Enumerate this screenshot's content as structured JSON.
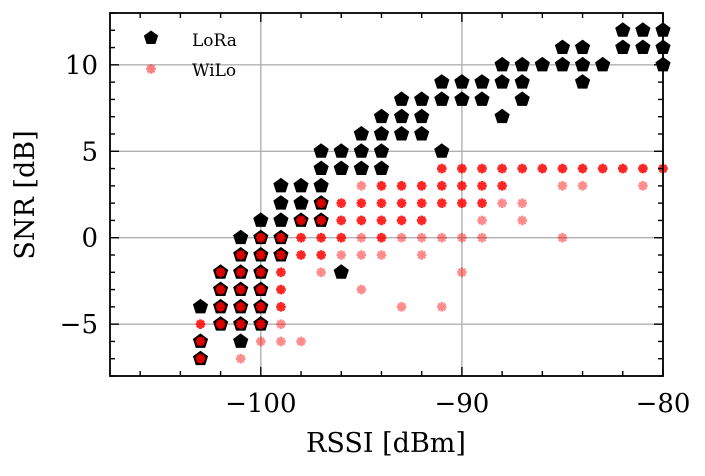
{
  "chart_data": {
    "type": "scatter",
    "title": "",
    "xlabel": "RSSI [dBm]",
    "ylabel": "SNR [dB]",
    "xlim": [
      -107.5,
      -80
    ],
    "ylim": [
      -8,
      13
    ],
    "xticks": [
      -100,
      -90,
      -80
    ],
    "xtick_labels": [
      "−100",
      "−90",
      "−80"
    ],
    "yticks": [
      -5,
      0,
      5,
      10
    ],
    "ytick_labels": [
      "−5",
      "0",
      "5",
      "10"
    ],
    "grid": true,
    "legend_position": "top-left",
    "series": [
      {
        "name": "LoRa",
        "marker": "pentagon",
        "color": "#000000",
        "points": [
          [
            -103,
            -7
          ],
          [
            -103,
            -6
          ],
          [
            -103,
            -4
          ],
          [
            -102,
            -5
          ],
          [
            -102,
            -4
          ],
          [
            -102,
            -3
          ],
          [
            -102,
            -2
          ],
          [
            -101,
            -6
          ],
          [
            -101,
            -5
          ],
          [
            -101,
            -4
          ],
          [
            -101,
            -3
          ],
          [
            -101,
            -2
          ],
          [
            -101,
            -1
          ],
          [
            -101,
            0
          ],
          [
            -100,
            -5
          ],
          [
            -100,
            -4
          ],
          [
            -100,
            -3
          ],
          [
            -100,
            -2
          ],
          [
            -100,
            -1
          ],
          [
            -100,
            0
          ],
          [
            -100,
            1
          ],
          [
            -99,
            -1
          ],
          [
            -99,
            0
          ],
          [
            -99,
            1
          ],
          [
            -99,
            2
          ],
          [
            -99,
            3
          ],
          [
            -98,
            1
          ],
          [
            -98,
            2
          ],
          [
            -98,
            3
          ],
          [
            -97,
            1
          ],
          [
            -97,
            2
          ],
          [
            -97,
            3
          ],
          [
            -97,
            4
          ],
          [
            -97,
            5
          ],
          [
            -96,
            -2
          ],
          [
            -96,
            4
          ],
          [
            -96,
            5
          ],
          [
            -95,
            4
          ],
          [
            -95,
            5
          ],
          [
            -95,
            6
          ],
          [
            -94,
            4
          ],
          [
            -94,
            5
          ],
          [
            -94,
            6
          ],
          [
            -94,
            7
          ],
          [
            -93,
            6
          ],
          [
            -93,
            7
          ],
          [
            -93,
            8
          ],
          [
            -92,
            6
          ],
          [
            -92,
            7
          ],
          [
            -92,
            8
          ],
          [
            -91,
            5
          ],
          [
            -91,
            8
          ],
          [
            -91,
            9
          ],
          [
            -90,
            8
          ],
          [
            -90,
            9
          ],
          [
            -89,
            8
          ],
          [
            -89,
            9
          ],
          [
            -88,
            7
          ],
          [
            -88,
            9
          ],
          [
            -88,
            10
          ],
          [
            -87,
            8
          ],
          [
            -87,
            9
          ],
          [
            -87,
            10
          ],
          [
            -86,
            10
          ],
          [
            -85,
            10
          ],
          [
            -85,
            11
          ],
          [
            -84,
            9
          ],
          [
            -84,
            10
          ],
          [
            -84,
            11
          ],
          [
            -83,
            10
          ],
          [
            -82,
            11
          ],
          [
            -82,
            12
          ],
          [
            -81,
            11
          ],
          [
            -81,
            12
          ],
          [
            -80,
            10
          ],
          [
            -80,
            11
          ],
          [
            -80,
            12
          ]
        ]
      },
      {
        "name": "WiLo",
        "marker": "asterisk",
        "color": "#ff0000",
        "strong_points": [
          [
            -103,
            -7
          ],
          [
            -103,
            -6
          ],
          [
            -103,
            -5
          ],
          [
            -102,
            -5
          ],
          [
            -102,
            -4
          ],
          [
            -102,
            -3
          ],
          [
            -102,
            -2
          ],
          [
            -101,
            -5
          ],
          [
            -101,
            -4
          ],
          [
            -101,
            -3
          ],
          [
            -101,
            -2
          ],
          [
            -101,
            -1
          ],
          [
            -100,
            -5
          ],
          [
            -100,
            -4
          ],
          [
            -100,
            -3
          ],
          [
            -100,
            -2
          ],
          [
            -100,
            -1
          ],
          [
            -100,
            0
          ],
          [
            -99,
            -4
          ],
          [
            -99,
            -3
          ],
          [
            -99,
            -2
          ],
          [
            -99,
            -1
          ],
          [
            -99,
            0
          ],
          [
            -98,
            -1
          ],
          [
            -98,
            0
          ],
          [
            -98,
            1
          ],
          [
            -97,
            -1
          ],
          [
            -97,
            0
          ],
          [
            -97,
            1
          ],
          [
            -97,
            2
          ],
          [
            -96,
            0
          ],
          [
            -96,
            1
          ],
          [
            -96,
            2
          ],
          [
            -95,
            1
          ],
          [
            -95,
            2
          ],
          [
            -94,
            0
          ],
          [
            -94,
            1
          ],
          [
            -94,
            2
          ],
          [
            -94,
            3
          ],
          [
            -93,
            1
          ],
          [
            -93,
            2
          ],
          [
            -93,
            3
          ],
          [
            -92,
            1
          ],
          [
            -92,
            2
          ],
          [
            -92,
            3
          ],
          [
            -91,
            2
          ],
          [
            -91,
            3
          ],
          [
            -91,
            4
          ],
          [
            -90,
            2
          ],
          [
            -90,
            3
          ],
          [
            -90,
            4
          ],
          [
            -89,
            2
          ],
          [
            -89,
            3
          ],
          [
            -89,
            4
          ],
          [
            -88,
            3
          ],
          [
            -88,
            4
          ],
          [
            -87,
            4
          ],
          [
            -86,
            4
          ],
          [
            -85,
            4
          ],
          [
            -84,
            4
          ],
          [
            -83,
            4
          ],
          [
            -82,
            4
          ],
          [
            -81,
            4
          ],
          [
            -80,
            4
          ]
        ],
        "faint_points": [
          [
            -101,
            -7
          ],
          [
            -100,
            -6
          ],
          [
            -99,
            -6
          ],
          [
            -98,
            -6
          ],
          [
            -99,
            -5
          ],
          [
            -97,
            -2
          ],
          [
            -96,
            -1
          ],
          [
            -95,
            -3
          ],
          [
            -95,
            -1
          ],
          [
            -95,
            0
          ],
          [
            -95,
            3
          ],
          [
            -94,
            -1
          ],
          [
            -93,
            -4
          ],
          [
            -93,
            0
          ],
          [
            -92,
            -1
          ],
          [
            -92,
            0
          ],
          [
            -91,
            -4
          ],
          [
            -91,
            0
          ],
          [
            -90,
            -2
          ],
          [
            -90,
            0
          ],
          [
            -89,
            0
          ],
          [
            -89,
            1
          ],
          [
            -88,
            2
          ],
          [
            -87,
            1
          ],
          [
            -87,
            2
          ],
          [
            -85,
            0
          ],
          [
            -85,
            3
          ],
          [
            -84,
            3
          ],
          [
            -81,
            3
          ]
        ]
      }
    ]
  }
}
